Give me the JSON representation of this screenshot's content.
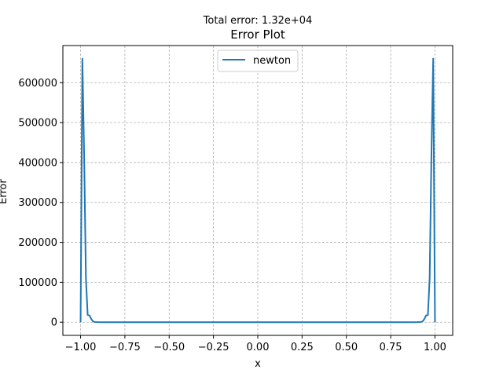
{
  "chart_data": {
    "type": "line",
    "suptitle": "Total error: 1.32e+04",
    "title": "Error Plot",
    "xlabel": "x",
    "ylabel": "Error",
    "xlim": [
      -1.1,
      1.1
    ],
    "ylim": [
      -33000,
      693000
    ],
    "xticks": [
      -1.0,
      -0.75,
      -0.5,
      -0.25,
      0.0,
      0.25,
      0.5,
      0.75,
      1.0
    ],
    "xtick_labels": [
      "−1.00",
      "−0.75",
      "−0.50",
      "−0.25",
      "0.00",
      "0.25",
      "0.50",
      "0.75",
      "1.00"
    ],
    "yticks": [
      0,
      100000,
      200000,
      300000,
      400000,
      500000,
      600000
    ],
    "ytick_labels": [
      "0",
      "100000",
      "200000",
      "300000",
      "400000",
      "500000",
      "600000"
    ],
    "grid": true,
    "legend_position": "top-center",
    "series": [
      {
        "name": "newton",
        "color": "#1f77b4",
        "x": [
          -1.0,
          -0.99,
          -0.98,
          -0.97,
          -0.96,
          -0.95,
          -0.94,
          -0.93,
          -0.92,
          -0.9,
          -0.88,
          -0.85,
          -0.8,
          -0.7,
          -0.5,
          -0.25,
          0.0,
          0.25,
          0.5,
          0.7,
          0.8,
          0.85,
          0.88,
          0.9,
          0.92,
          0.93,
          0.94,
          0.95,
          0.96,
          0.97,
          0.98,
          0.99,
          1.0
        ],
        "y": [
          0,
          660000,
          420000,
          110000,
          18000,
          17000,
          8000,
          2000,
          500,
          100,
          20,
          0,
          0,
          0,
          0,
          0,
          0,
          0,
          0,
          0,
          0,
          0,
          20,
          100,
          500,
          2000,
          8000,
          17000,
          18000,
          110000,
          420000,
          660000,
          0
        ]
      }
    ]
  }
}
